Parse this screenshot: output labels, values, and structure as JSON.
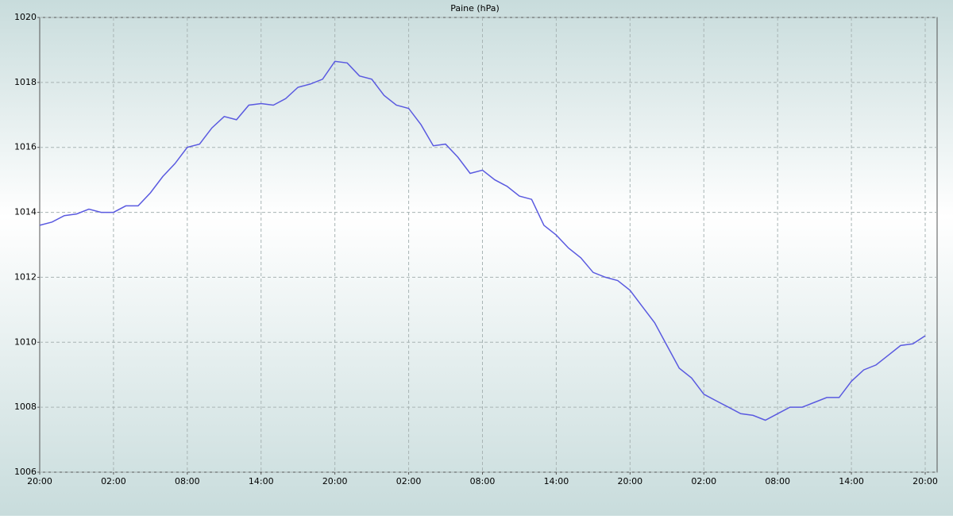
{
  "chart_data": {
    "type": "line",
    "title": "Paine (hPa)",
    "categories": [
      "20:00",
      null,
      null,
      null,
      null,
      null,
      "02:00",
      null,
      null,
      null,
      null,
      null,
      "08:00",
      null,
      null,
      null,
      null,
      null,
      "14:00",
      null,
      null,
      null,
      null,
      null,
      "20:00",
      null,
      null,
      null,
      null,
      null,
      "02:00",
      null,
      null,
      null,
      null,
      null,
      "08:00",
      null,
      null,
      null,
      null,
      null,
      "14:00",
      null,
      null,
      null,
      null,
      null,
      "20:00",
      null,
      null,
      null,
      null,
      null,
      "02:00",
      null,
      null,
      null,
      null,
      null,
      "08:00",
      null,
      null,
      null,
      null,
      null,
      "14:00",
      null,
      null,
      null,
      null,
      null,
      "20:00"
    ],
    "series": [
      {
        "color": "#5a5ae0",
        "values": [
          1013.6,
          1013.7,
          1013.9,
          1013.95,
          1014.1,
          1014.0,
          1014.0,
          1014.2,
          1014.2,
          1014.6,
          1015.1,
          1015.5,
          1016.0,
          1016.1,
          1016.6,
          1016.95,
          1016.85,
          1017.3,
          1017.35,
          1017.3,
          1017.5,
          1017.85,
          1017.95,
          1018.1,
          1018.65,
          1018.6,
          1018.2,
          1018.1,
          1017.6,
          1017.3,
          1017.2,
          1016.7,
          1016.05,
          1016.1,
          1015.7,
          1015.2,
          1015.3,
          1015.0,
          1014.8,
          1014.5,
          1014.4,
          1013.6,
          1013.3,
          1012.9,
          1012.6,
          1012.15,
          1012.0,
          1011.9,
          1011.6,
          1011.1,
          1010.6,
          1009.9,
          1009.2,
          1008.9,
          1008.4,
          1008.2,
          1008.0,
          1007.8,
          1007.75,
          1007.6,
          1007.8,
          1008.0,
          1008.0,
          1008.15,
          1008.3,
          1008.3,
          1008.8,
          1009.15,
          1009.3,
          1009.6,
          1009.9,
          1009.95,
          1010.2
        ]
      }
    ],
    "ylim": [
      1006,
      1020
    ],
    "yticks": [
      1006,
      1008,
      1010,
      1012,
      1014,
      1016,
      1018,
      1020
    ],
    "grid": true
  }
}
